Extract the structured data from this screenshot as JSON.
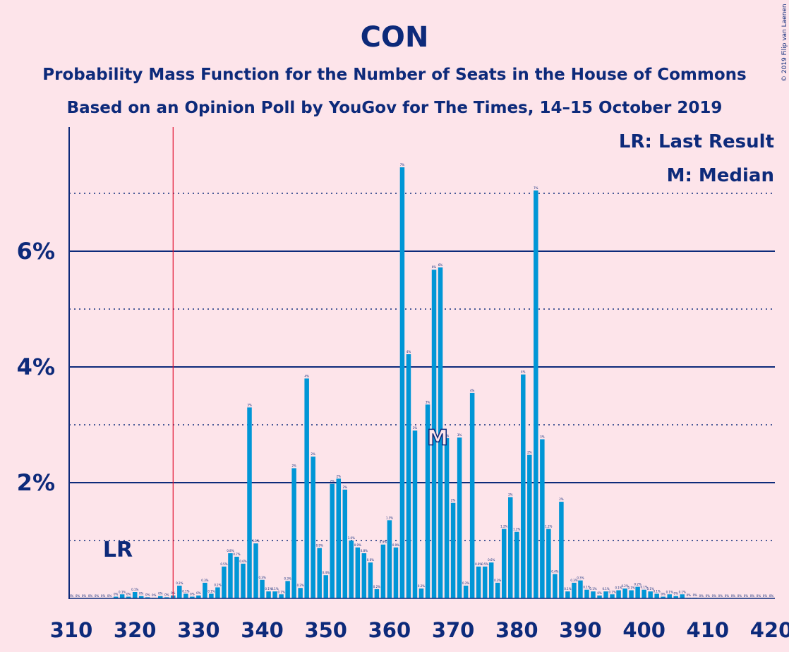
{
  "title": "CON",
  "subtitle1": "Probability Mass Function for the Number of Seats in the House of Commons",
  "subtitle2": "Based on an Opinion Poll by YouGov for The Times, 14–15 October 2019",
  "copyright": "© 2019 Filip van Laenen",
  "legend": {
    "lr": "LR: Last Result",
    "median": "M: Median"
  },
  "markers": {
    "lr_label": "LR",
    "median_label": "M"
  },
  "colors": {
    "background": "#fde4ea",
    "bar": "#0096d6",
    "text": "#0d2a7a",
    "last_result_line": "#e0102f"
  },
  "chart_data": {
    "type": "bar",
    "xlim": [
      310,
      420
    ],
    "ylim": [
      0,
      8
    ],
    "xticks": [
      "310",
      "320",
      "330",
      "340",
      "350",
      "360",
      "370",
      "380",
      "390",
      "400",
      "410",
      "420"
    ],
    "yticks_labeled": [
      "2%",
      "4%",
      "6%"
    ],
    "last_result": 326,
    "median": 368,
    "x": [
      310,
      311,
      312,
      313,
      314,
      315,
      316,
      317,
      318,
      319,
      320,
      321,
      322,
      323,
      324,
      325,
      326,
      327,
      328,
      329,
      330,
      331,
      332,
      333,
      334,
      335,
      336,
      337,
      338,
      339,
      340,
      341,
      342,
      343,
      344,
      345,
      346,
      347,
      348,
      349,
      350,
      351,
      352,
      353,
      354,
      355,
      356,
      357,
      358,
      359,
      360,
      361,
      362,
      363,
      364,
      365,
      366,
      367,
      368,
      369,
      370,
      371,
      372,
      373,
      374,
      375,
      376,
      377,
      378,
      379,
      380,
      381,
      382,
      383,
      384,
      385,
      386,
      387,
      388,
      389,
      390,
      391,
      392,
      393,
      394,
      395,
      396,
      397,
      398,
      399,
      400,
      401,
      402,
      403,
      404,
      405,
      406,
      407,
      408,
      409,
      410,
      411,
      412,
      413,
      414,
      415,
      416,
      417,
      418,
      419,
      420
    ],
    "values": [
      0,
      0,
      0,
      0,
      0,
      0,
      0,
      0.03,
      0.07,
      0.03,
      0.11,
      0.04,
      0.02,
      0.01,
      0.04,
      0.02,
      0.05,
      0.22,
      0.08,
      0.03,
      0.05,
      0.27,
      0.08,
      0.19,
      0.55,
      0.78,
      0.72,
      0.6,
      3.3,
      0.95,
      0.32,
      0.12,
      0.12,
      0.07,
      0.3,
      2.25,
      0.18,
      3.8,
      2.45,
      0.87,
      0.4,
      1.98,
      2.07,
      1.88,
      1.0,
      0.88,
      0.78,
      0.62,
      0.16,
      0.93,
      1.35,
      0.88,
      7.45,
      4.22,
      2.9,
      0.17,
      3.35,
      5.68,
      5.72,
      2.77,
      1.65,
      2.78,
      0.22,
      3.55,
      0.55,
      0.55,
      0.62,
      0.27,
      1.2,
      1.75,
      1.15,
      3.87,
      2.48,
      7.05,
      2.75,
      1.2,
      0.42,
      1.67,
      0.12,
      0.27,
      0.31,
      0.15,
      0.12,
      0.05,
      0.12,
      0.07,
      0.14,
      0.17,
      0.14,
      0.2,
      0.15,
      0.12,
      0.08,
      0.03,
      0.07,
      0.04,
      0.07,
      0.01,
      0.01,
      0,
      0,
      0,
      0,
      0,
      0,
      0,
      0,
      0,
      0,
      0,
      0
    ],
    "labels": [
      "0%",
      "0%",
      "0%",
      "0%",
      "0%",
      "0%",
      "0%",
      "0%",
      "0.1%",
      "0%",
      "0.1%",
      "0%",
      "0%",
      "0%",
      "0%",
      "0%",
      "0%",
      "0.2%",
      "0.1%",
      "0%",
      "0%",
      "0.3%",
      "0.1%",
      "0.2%",
      "0.5%",
      "0.8%",
      "0.7%",
      "0.6%",
      "3%",
      "1.0%",
      "0.3%",
      "0.1%",
      "0.1%",
      "0.1%",
      "0.3%",
      "2%",
      "0.2%",
      "4%",
      "2%",
      "0.9%",
      "0.4%",
      "2%",
      "2%",
      "2%",
      "1.0%",
      "0.9%",
      "0.8%",
      "0.6%",
      "0.2%",
      "0.9%",
      "1.3%",
      "0.9%",
      "7%",
      "4%",
      "3%",
      "0.2%",
      "3%",
      "6%",
      "6%",
      "3%",
      "2%",
      "3%",
      "0.2%",
      "4%",
      "0.6%",
      "0.5%",
      "0.6%",
      "0.3%",
      "1.2%",
      "2%",
      "1.2%",
      "4%",
      "2%",
      "7%",
      "3%",
      "1.2%",
      "0.4%",
      "2%",
      "0.1%",
      "0.3%",
      "0.3%",
      "0.1%",
      "0.1%",
      "0%",
      "0.1%",
      "0.1%",
      "0.1%",
      "0.2%",
      "0.1%",
      "0.2%",
      "0.1%",
      "0.1%",
      "0.1%",
      "0%",
      "0.1%",
      "0%",
      "0.1%",
      "0%",
      "0%",
      "0%",
      "0%",
      "0%",
      "0%",
      "0%",
      "0%",
      "0%",
      "0%",
      "0%",
      "0%",
      "0%",
      "0%"
    ]
  }
}
